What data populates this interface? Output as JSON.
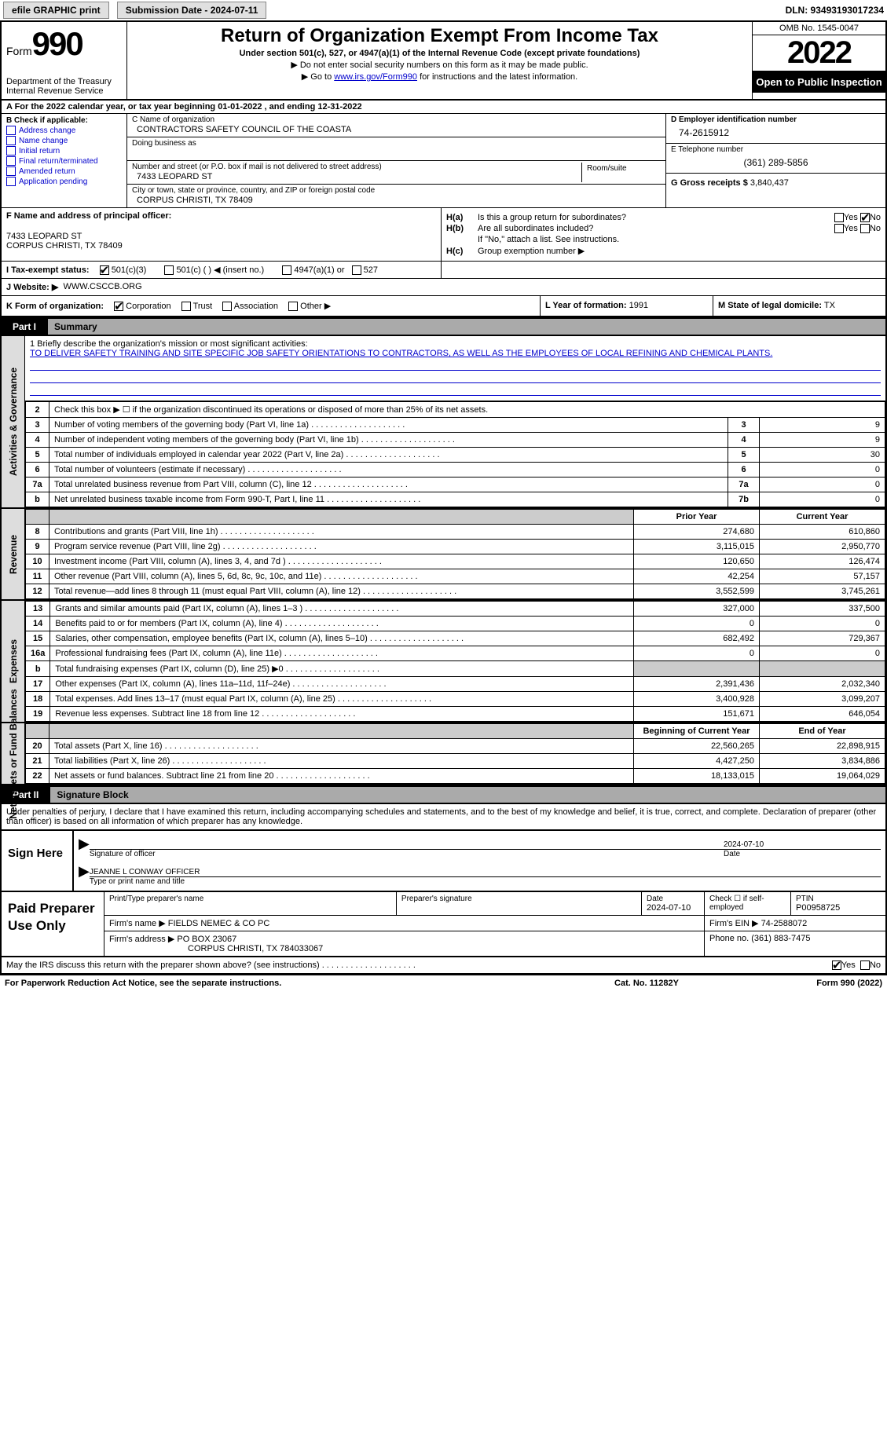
{
  "topbar": {
    "efile_label": "efile GRAPHIC print",
    "submission_label": "Submission Date - 2024-07-11",
    "dln": "DLN: 93493193017234"
  },
  "header": {
    "form_label": "Form",
    "form_number": "990",
    "dept": "Department of the Treasury Internal Revenue Service",
    "title": "Return of Organization Exempt From Income Tax",
    "subtitle": "Under section 501(c), 527, or 4947(a)(1) of the Internal Revenue Code (except private foundations)",
    "note1": "▶ Do not enter social security numbers on this form as it may be made public.",
    "note2_pre": "▶ Go to ",
    "note2_link": "www.irs.gov/Form990",
    "note2_post": " for instructions and the latest information.",
    "omb": "OMB No. 1545-0047",
    "year": "2022",
    "open": "Open to Public Inspection"
  },
  "row_a": "A For the 2022 calendar year, or tax year beginning 01-01-2022   , and ending 12-31-2022",
  "col_b": {
    "title": "B Check if applicable:",
    "items": [
      "Address change",
      "Name change",
      "Initial return",
      "Final return/terminated",
      "Amended return",
      "Application pending"
    ]
  },
  "col_c": {
    "name_label": "C Name of organization",
    "name": "CONTRACTORS SAFETY COUNCIL OF THE COASTA",
    "dba_label": "Doing business as",
    "addr_label": "Number and street (or P.O. box if mail is not delivered to street address)",
    "room_label": "Room/suite",
    "addr": "7433 LEOPARD ST",
    "city_label": "City or town, state or province, country, and ZIP or foreign postal code",
    "city": "CORPUS CHRISTI, TX  78409"
  },
  "col_d": {
    "ein_label": "D Employer identification number",
    "ein": "74-2615912",
    "tel_label": "E Telephone number",
    "tel": "(361) 289-5856",
    "gross_label": "G Gross receipts $",
    "gross": "3,840,437"
  },
  "block_f": {
    "label": "F Name and address of principal officer:",
    "addr1": "7433 LEOPARD ST",
    "addr2": "CORPUS CHRISTI, TX  78409"
  },
  "block_h": {
    "ha": "Is this a group return for subordinates?",
    "hb": "Are all subordinates included?",
    "hb_note": "If \"No,\" attach a list. See instructions.",
    "hc": "Group exemption number ▶",
    "yes": "Yes",
    "no": "No"
  },
  "tax_status": {
    "label": "I  Tax-exempt status:",
    "opt1": "501(c)(3)",
    "opt2": "501(c) (  ) ◀ (insert no.)",
    "opt3": "4947(a)(1) or",
    "opt4": "527"
  },
  "website": {
    "label": "J  Website: ▶",
    "value": "WWW.CSCCB.ORG"
  },
  "form_org": {
    "label": "K Form of organization:",
    "opts": [
      "Corporation",
      "Trust",
      "Association",
      "Other ▶"
    ]
  },
  "col_l": {
    "label": "L Year of formation:",
    "value": "1991"
  },
  "col_m": {
    "label": "M State of legal domicile:",
    "value": "TX"
  },
  "part1": {
    "label": "Part I",
    "title": "Summary"
  },
  "mission": {
    "label": "1  Briefly describe the organization's mission or most significant activities:",
    "text": "TO DELIVER SAFETY TRAINING AND SITE SPECIFIC JOB SAFETY ORIENTATIONS TO CONTRACTORS, AS WELL AS THE EMPLOYEES OF LOCAL REFINING AND CHEMICAL PLANTS."
  },
  "line2": "Check this box ▶ ☐ if the organization discontinued its operations or disposed of more than 25% of its net assets.",
  "activities_rows": [
    {
      "n": "3",
      "d": "Number of voting members of the governing body (Part VI, line 1a)",
      "box": "3",
      "v": "9"
    },
    {
      "n": "4",
      "d": "Number of independent voting members of the governing body (Part VI, line 1b)",
      "box": "4",
      "v": "9"
    },
    {
      "n": "5",
      "d": "Total number of individuals employed in calendar year 2022 (Part V, line 2a)",
      "box": "5",
      "v": "30"
    },
    {
      "n": "6",
      "d": "Total number of volunteers (estimate if necessary)",
      "box": "6",
      "v": "0"
    },
    {
      "n": "7a",
      "d": "Total unrelated business revenue from Part VIII, column (C), line 12",
      "box": "7a",
      "v": "0"
    },
    {
      "n": "b",
      "d": "Net unrelated business taxable income from Form 990-T, Part I, line 11",
      "box": "7b",
      "v": "0"
    }
  ],
  "rev_header": {
    "prior": "Prior Year",
    "current": "Current Year"
  },
  "revenue_rows": [
    {
      "n": "8",
      "d": "Contributions and grants (Part VIII, line 1h)",
      "p": "274,680",
      "c": "610,860"
    },
    {
      "n": "9",
      "d": "Program service revenue (Part VIII, line 2g)",
      "p": "3,115,015",
      "c": "2,950,770"
    },
    {
      "n": "10",
      "d": "Investment income (Part VIII, column (A), lines 3, 4, and 7d )",
      "p": "120,650",
      "c": "126,474"
    },
    {
      "n": "11",
      "d": "Other revenue (Part VIII, column (A), lines 5, 6d, 8c, 9c, 10c, and 11e)",
      "p": "42,254",
      "c": "57,157"
    },
    {
      "n": "12",
      "d": "Total revenue—add lines 8 through 11 (must equal Part VIII, column (A), line 12)",
      "p": "3,552,599",
      "c": "3,745,261"
    }
  ],
  "expense_rows": [
    {
      "n": "13",
      "d": "Grants and similar amounts paid (Part IX, column (A), lines 1–3 )",
      "p": "327,000",
      "c": "337,500"
    },
    {
      "n": "14",
      "d": "Benefits paid to or for members (Part IX, column (A), line 4)",
      "p": "0",
      "c": "0"
    },
    {
      "n": "15",
      "d": "Salaries, other compensation, employee benefits (Part IX, column (A), lines 5–10)",
      "p": "682,492",
      "c": "729,367"
    },
    {
      "n": "16a",
      "d": "Professional fundraising fees (Part IX, column (A), line 11e)",
      "p": "0",
      "c": "0"
    },
    {
      "n": "b",
      "d": "Total fundraising expenses (Part IX, column (D), line 25) ▶0",
      "p": "GREY",
      "c": "GREY"
    },
    {
      "n": "17",
      "d": "Other expenses (Part IX, column (A), lines 11a–11d, 11f–24e)",
      "p": "2,391,436",
      "c": "2,032,340"
    },
    {
      "n": "18",
      "d": "Total expenses. Add lines 13–17 (must equal Part IX, column (A), line 25)",
      "p": "3,400,928",
      "c": "3,099,207"
    },
    {
      "n": "19",
      "d": "Revenue less expenses. Subtract line 18 from line 12",
      "p": "151,671",
      "c": "646,054"
    }
  ],
  "net_header": {
    "begin": "Beginning of Current Year",
    "end": "End of Year"
  },
  "net_rows": [
    {
      "n": "20",
      "d": "Total assets (Part X, line 16)",
      "p": "22,560,265",
      "c": "22,898,915"
    },
    {
      "n": "21",
      "d": "Total liabilities (Part X, line 26)",
      "p": "4,427,250",
      "c": "3,834,886"
    },
    {
      "n": "22",
      "d": "Net assets or fund balances. Subtract line 21 from line 20",
      "p": "18,133,015",
      "c": "19,064,029"
    }
  ],
  "vtabs": {
    "act": "Activities & Governance",
    "rev": "Revenue",
    "exp": "Expenses",
    "net": "Net Assets or Fund Balances"
  },
  "part2": {
    "label": "Part II",
    "title": "Signature Block"
  },
  "sig_intro": "Under penalties of perjury, I declare that I have examined this return, including accompanying schedules and statements, and to the best of my knowledge and belief, it is true, correct, and complete. Declaration of preparer (other than officer) is based on all information of which preparer has any knowledge.",
  "sign": {
    "here": "Sign Here",
    "sig_label": "Signature of officer",
    "date": "2024-07-10",
    "date_label": "Date",
    "name": "JEANNE L CONWAY  OFFICER",
    "name_label": "Type or print name and title"
  },
  "prep": {
    "title": "Paid Preparer Use Only",
    "row1": {
      "l1": "Print/Type preparer's name",
      "l2": "Preparer's signature",
      "l3": "Date",
      "d": "2024-07-10",
      "l4": "Check ☐ if self-employed",
      "l5": "PTIN",
      "ptin": "P00958725"
    },
    "row2": {
      "l": "Firm's name    ▶",
      "v": "FIELDS NEMEC & CO PC",
      "einl": "Firm's EIN ▶",
      "ein": "74-2588072"
    },
    "row3": {
      "l": "Firm's address ▶",
      "v1": "PO BOX 23067",
      "v2": "CORPUS CHRISTI, TX  784033067",
      "phl": "Phone no.",
      "ph": "(361) 883-7475"
    }
  },
  "discuss": "May the IRS discuss this return with the preparer shown above? (see instructions)",
  "footer": {
    "l": "For Paperwork Reduction Act Notice, see the separate instructions.",
    "c": "Cat. No. 11282Y",
    "r": "Form 990 (2022)"
  }
}
